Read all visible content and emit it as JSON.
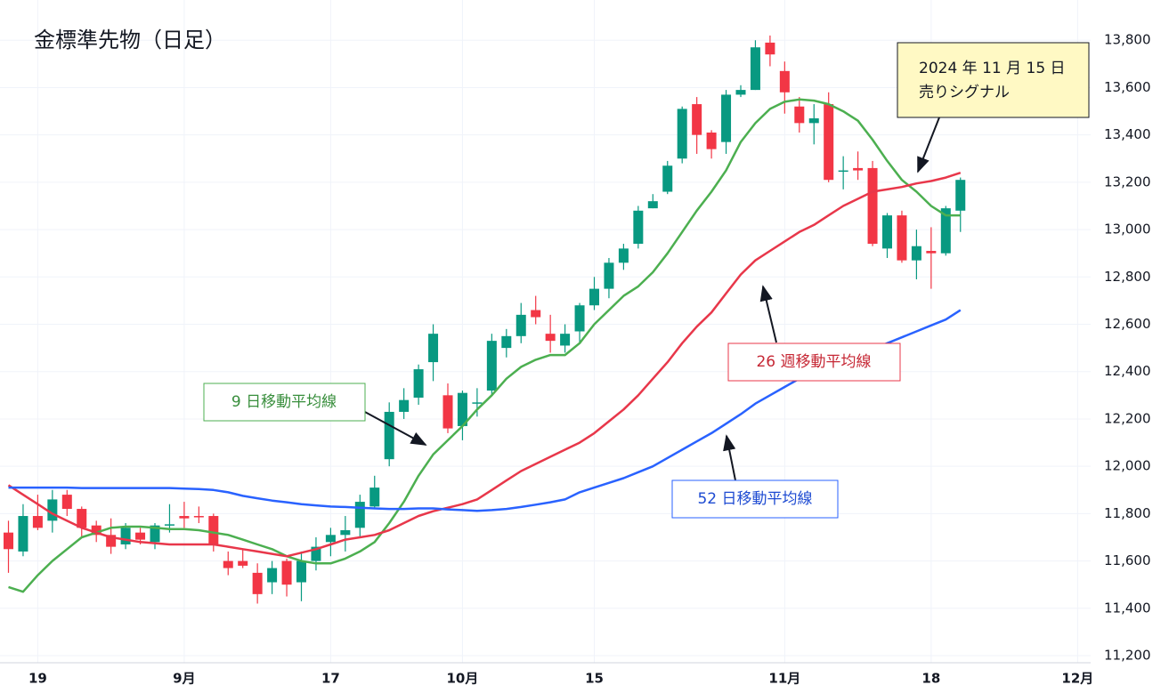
{
  "chart_data": {
    "type": "candlestick",
    "title": "金標準先物（日足）",
    "categories": [
      null,
      null,
      "19",
      null,
      null,
      null,
      null,
      null,
      null,
      null,
      null,
      null,
      "9月",
      null,
      null,
      null,
      null,
      null,
      null,
      null,
      null,
      null,
      "17",
      null,
      null,
      null,
      null,
      null,
      null,
      null,
      null,
      "10月",
      null,
      null,
      null,
      null,
      null,
      null,
      null,
      null,
      "15",
      null,
      null,
      null,
      null,
      null,
      null,
      null,
      null,
      null,
      null,
      null,
      null,
      "11月",
      null,
      null,
      null,
      null,
      null,
      null,
      null,
      null,
      null,
      "18",
      null,
      null,
      null,
      null,
      null,
      null,
      null,
      null,
      null,
      "12月"
    ],
    "open": [
      11720,
      11640,
      11790,
      11770,
      11880,
      11820,
      11750,
      11710,
      11670,
      11720,
      11680,
      11750,
      11790,
      11790,
      11790,
      11600,
      11600,
      11550,
      11510,
      11600,
      11510,
      11600,
      11680,
      11710,
      11740,
      11830,
      12030,
      12230,
      12290,
      12440,
      12300,
      12170,
      12270,
      12320,
      12500,
      12550,
      12660,
      12560,
      12510,
      12570,
      12680,
      12750,
      12860,
      12940,
      13090,
      13160,
      13300,
      13530,
      13410,
      13370,
      13570,
      13590,
      13790,
      13670,
      13520,
      13450,
      13530,
      13250,
      13260,
      13260,
      12920,
      13060,
      12870,
      12910,
      12900,
      13080,
      null,
      null,
      null,
      null,
      null,
      null,
      null,
      null
    ],
    "high": [
      11770,
      11840,
      11880,
      11900,
      11900,
      11830,
      11770,
      11780,
      11760,
      11740,
      11760,
      11840,
      11850,
      11830,
      11800,
      11640,
      11650,
      11590,
      11600,
      11610,
      11640,
      11700,
      11740,
      11790,
      11880,
      11960,
      12270,
      12330,
      12430,
      12600,
      12350,
      12320,
      12330,
      12560,
      12580,
      12690,
      12720,
      12640,
      12600,
      12690,
      12800,
      12880,
      12940,
      13100,
      13150,
      13290,
      13520,
      13560,
      13420,
      13590,
      13610,
      13800,
      13820,
      13710,
      13560,
      13530,
      13580,
      13310,
      13330,
      13290,
      13070,
      13080,
      13000,
      13010,
      13100,
      13220,
      null,
      null,
      null,
      null,
      null,
      null,
      null,
      null
    ],
    "low": [
      11550,
      11620,
      11730,
      11720,
      11790,
      11700,
      11680,
      11630,
      11650,
      11670,
      11650,
      11720,
      11740,
      11760,
      11640,
      11540,
      11570,
      11420,
      11460,
      11450,
      11430,
      11560,
      11620,
      11640,
      11700,
      11820,
      12000,
      12200,
      12260,
      12360,
      12140,
      12110,
      12210,
      12300,
      12460,
      12520,
      12600,
      12480,
      12480,
      12520,
      12660,
      12710,
      12830,
      12920,
      13090,
      13150,
      13280,
      13320,
      13300,
      13320,
      13560,
      13590,
      13690,
      13490,
      13410,
      13360,
      13200,
      13170,
      13210,
      12930,
      12880,
      12860,
      12790,
      12750,
      12890,
      12990,
      null,
      null,
      null,
      null,
      null,
      null,
      null,
      null
    ],
    "close": [
      11650,
      11790,
      11740,
      11860,
      11820,
      11740,
      11710,
      11660,
      11740,
      11690,
      11750,
      11755,
      11780,
      11785,
      11670,
      11570,
      11580,
      11460,
      11570,
      11500,
      11600,
      11660,
      11710,
      11730,
      11850,
      11910,
      12230,
      12280,
      12410,
      12560,
      12160,
      12310,
      12270,
      12530,
      12550,
      12640,
      12630,
      12530,
      12560,
      12680,
      12750,
      12860,
      12920,
      13080,
      13120,
      13270,
      13510,
      13400,
      13340,
      13570,
      13590,
      13770,
      13740,
      13580,
      13450,
      13470,
      13210,
      13250,
      13250,
      12940,
      13060,
      12870,
      12930,
      12900,
      13090,
      13210,
      null,
      null,
      null,
      null,
      null,
      null,
      null,
      null
    ],
    "up_color": "#089981",
    "down_color": "#f23645",
    "series": [
      {
        "name": "9 日移動平均線",
        "color": "#4caf50",
        "values": [
          11490,
          11470,
          11540,
          11600,
          11650,
          11700,
          11720,
          11740,
          11745,
          11745,
          11740,
          11735,
          11735,
          11730,
          11720,
          11710,
          11690,
          11670,
          11650,
          11620,
          11600,
          11590,
          11590,
          11610,
          11640,
          11680,
          11760,
          11850,
          11960,
          12050,
          12110,
          12170,
          12240,
          12300,
          12370,
          12420,
          12450,
          12470,
          12470,
          12520,
          12600,
          12660,
          12720,
          12760,
          12820,
          12900,
          12990,
          13080,
          13160,
          13250,
          13370,
          13450,
          13510,
          13540,
          13550,
          13545,
          13530,
          13500,
          13460,
          13380,
          13290,
          13210,
          13160,
          13100,
          13060,
          13060,
          null,
          null,
          null,
          null,
          null,
          null,
          null,
          null
        ]
      },
      {
        "name": "26 週移動平均線",
        "color": "#e8374a",
        "values": [
          11920,
          11880,
          11840,
          11800,
          11770,
          11740,
          11720,
          11700,
          11690,
          11680,
          11675,
          11670,
          11670,
          11670,
          11670,
          11660,
          11650,
          11640,
          11630,
          11620,
          11635,
          11650,
          11670,
          11690,
          11700,
          11710,
          11730,
          11760,
          11790,
          11810,
          11825,
          11840,
          11860,
          11900,
          11940,
          11980,
          12010,
          12040,
          12070,
          12100,
          12140,
          12190,
          12240,
          12300,
          12370,
          12440,
          12520,
          12590,
          12650,
          12730,
          12810,
          12870,
          12910,
          12950,
          12990,
          13020,
          13060,
          13100,
          13130,
          13160,
          13170,
          13180,
          13195,
          13205,
          13220,
          13240,
          null,
          null,
          null,
          null,
          null,
          null,
          null,
          null
        ]
      },
      {
        "name": "52 日移動平均線",
        "color": "#2962ff",
        "values": [
          11910,
          11910,
          11910,
          11910,
          11910,
          11908,
          11908,
          11908,
          11908,
          11908,
          11908,
          11908,
          11906,
          11904,
          11900,
          11890,
          11875,
          11865,
          11855,
          11848,
          11840,
          11835,
          11830,
          11828,
          11825,
          11822,
          11820,
          11820,
          11822,
          11822,
          11818,
          11815,
          11812,
          11815,
          11820,
          11828,
          11838,
          11848,
          11860,
          11890,
          11910,
          11930,
          11950,
          11975,
          12000,
          12035,
          12070,
          12105,
          12140,
          12180,
          12220,
          12265,
          12300,
          12335,
          12370,
          12395,
          12420,
          12445,
          12470,
          12495,
          12520,
          12545,
          12570,
          12595,
          12620,
          12660,
          null,
          null,
          null,
          null,
          null,
          null,
          null,
          null
        ]
      }
    ],
    "annotation": [
      "2024 年 11 月 15 日",
      "売りシグナル"
    ],
    "ylim": [
      11170,
      13970
    ],
    "yticks": [
      {
        "value": 11200,
        "label": "11,200"
      },
      {
        "value": 11400,
        "label": "11,400"
      },
      {
        "value": 11600,
        "label": "11,600"
      },
      {
        "value": 11800,
        "label": "11,800"
      },
      {
        "value": 12000,
        "label": "12,000"
      },
      {
        "value": 12200,
        "label": "12,200"
      },
      {
        "value": 12400,
        "label": "12,400"
      },
      {
        "value": 12600,
        "label": "12,600"
      },
      {
        "value": 12800,
        "label": "12,800"
      },
      {
        "value": 13000,
        "label": "13,000"
      },
      {
        "value": 13200,
        "label": "13,200"
      },
      {
        "value": 13400,
        "label": "13,400"
      },
      {
        "value": 13600,
        "label": "13,600"
      },
      {
        "value": 13800,
        "label": "13,800"
      }
    ],
    "grid": true
  }
}
